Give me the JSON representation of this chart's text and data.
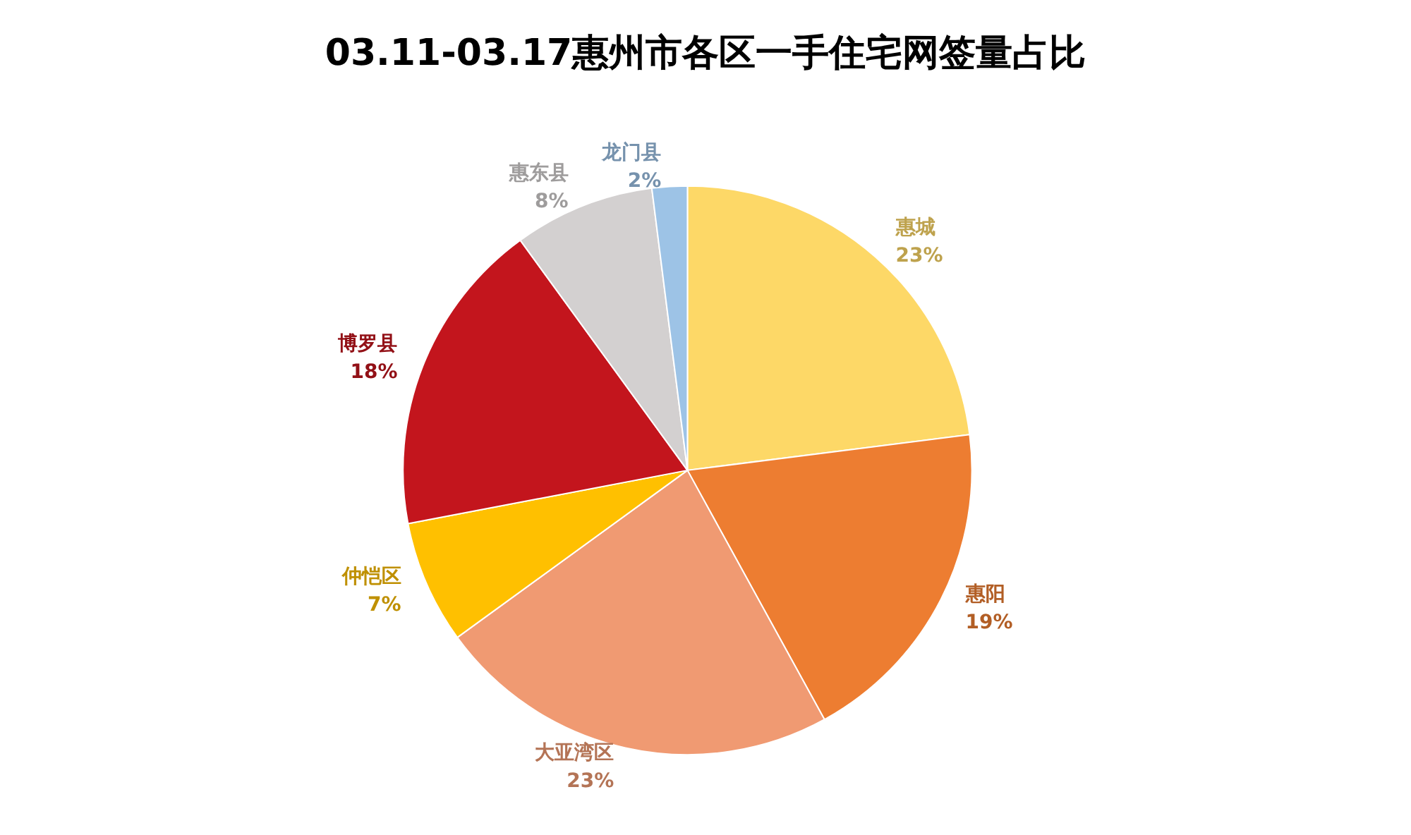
{
  "chart_data": {
    "type": "pie",
    "title": "03.11-03.17惠州市各区一手住宅网签量占比",
    "categories": [
      "惠城",
      "惠阳",
      "大亚湾区",
      "仲恺区",
      "博罗县",
      "惠东县",
      "龙门县"
    ],
    "values": [
      23,
      19,
      23,
      7,
      18,
      8,
      2
    ],
    "colors": [
      "#fdd867",
      "#ed7d31",
      "#f09a72",
      "#ffc000",
      "#c3151d",
      "#d3d0d0",
      "#9dc3e6"
    ],
    "value_labels": [
      "23%",
      "19%",
      "23%",
      "7%",
      "18%",
      "8%",
      "2%"
    ],
    "legend": false
  }
}
